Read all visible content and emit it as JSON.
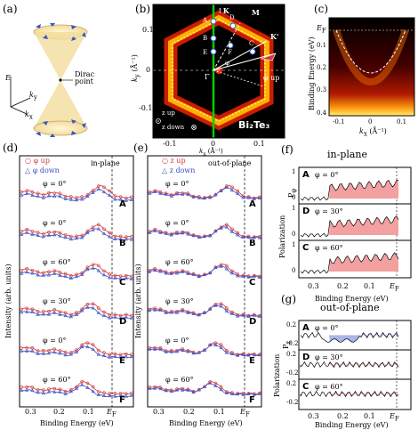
{
  "panel_labels": [
    "(a)",
    "(b)",
    "(c)",
    "(d)",
    "(e)",
    "(f)",
    "(g)"
  ],
  "panel_a": {
    "E": "E",
    "ky": "k",
    "ky_sub": "y",
    "kx": "k",
    "kx_sub": "x",
    "dirac": "Dirac",
    "point": "point"
  },
  "panel_b": {
    "k_vec": "K",
    "m_vec": "M",
    "kprime": "K'",
    "phi_up": "φ up",
    "gamma": "Γ",
    "zup": "z up",
    "zdown": "z down",
    "material": "Bi₂Te₃",
    "points": [
      "A",
      "B",
      "D",
      "E",
      "F",
      "C"
    ],
    "phi": "φ",
    "ylabel": "k",
    "ylabel_sub": "y",
    "ylabel_unit": " (Å⁻¹)",
    "xlabel": "k",
    "xlabel_sub": "x",
    "xlabel_unit": " (Å⁻¹)",
    "yticks": [
      "0.1",
      "0",
      "-0.1"
    ],
    "xticks": [
      "-0.1",
      "0",
      "0.1"
    ]
  },
  "panel_c": {
    "ef": "E",
    "ef_sub": "F",
    "ylabel": "Binding Energy (eV)",
    "yticks": [
      "0.1",
      "0.2",
      "0.3",
      "0.4"
    ],
    "xticks": [
      "-0.1",
      "0",
      "0.1"
    ],
    "xlabel": "k",
    "xlabel_sub": "x",
    "xlabel_unit": " (Å⁻¹)"
  },
  "panel_d": {
    "title": "in-plane",
    "legend": [
      {
        "sym": "○",
        "label": "φ up"
      },
      {
        "sym": "△",
        "label": "φ down"
      }
    ],
    "rows": [
      {
        "angle": "φ = 0°",
        "label": "A"
      },
      {
        "angle": "φ = 0°",
        "label": "B"
      },
      {
        "angle": "φ = 60°",
        "label": "C"
      },
      {
        "angle": "φ = 30°",
        "label": "D"
      },
      {
        "angle": "φ = 0°",
        "label": "E"
      },
      {
        "angle": "φ = 60°",
        "label": "F"
      }
    ],
    "ylabel": "Intensity (arb. units)",
    "xticks": [
      "0.3",
      "0.2",
      "0.1"
    ],
    "ef": "E",
    "ef_sub": "F",
    "xlabel": "Binding Energy (eV)"
  },
  "panel_e": {
    "title": "out-of-plane",
    "legend": [
      {
        "sym": "○",
        "label": "z  up"
      },
      {
        "sym": "△",
        "label": "z  down"
      }
    ],
    "rows": [
      {
        "angle": "φ = 0°",
        "label": "A"
      },
      {
        "angle": "φ = 0°",
        "label": "B"
      },
      {
        "angle": "φ = 60°",
        "label": "C"
      },
      {
        "angle": "φ = 30°",
        "label": "D"
      },
      {
        "angle": "φ = 0°",
        "label": "E"
      },
      {
        "angle": "φ = 60°",
        "label": "F"
      }
    ],
    "ylabel": "Intensity (arb. units)",
    "xticks": [
      "0.3",
      "0.2",
      "0.1"
    ],
    "ef": "E",
    "ef_sub": "F",
    "xlabel": "Binding Energy (eV)"
  },
  "panel_f": {
    "title": "in-plane",
    "ylabel": "Polarization",
    "ysub": "P",
    "ysub_sub": "φ",
    "rows": [
      {
        "label": "A",
        "angle": "φ = 0°"
      },
      {
        "label": "D",
        "angle": "φ = 30°"
      },
      {
        "label": "C",
        "angle": "φ = 60°"
      }
    ],
    "ticks": [
      "1",
      "0",
      "1",
      "0",
      "1",
      "0"
    ],
    "xticks": [
      "0.3",
      "0.2",
      "0.1"
    ],
    "ef": "E",
    "ef_sub": "F",
    "xlabel": "Binding Energy (eV)"
  },
  "panel_g": {
    "title": "out-of-plane",
    "ylabel": "Polarization",
    "ysub": "P",
    "ysub_sub": "z",
    "rows": [
      {
        "label": "A",
        "angle": "φ = 0°"
      },
      {
        "label": "D",
        "angle": "φ = 30°"
      },
      {
        "label": "C",
        "angle": "φ = 60°"
      }
    ],
    "ticks": [
      "0.2",
      "-0.2",
      "0.2",
      "-0.2",
      "0.2",
      "-0.2"
    ],
    "xticks": [
      "0.3",
      "0.2",
      "0.1"
    ],
    "ef": "E",
    "ef_sub": "F",
    "xlabel": "Binding Energy (eV)"
  },
  "colors": {
    "up": "#d23a3a",
    "down": "#3a4fc8",
    "fill_pos": "#f2a0a0",
    "fill_neg": "#a9b6e6"
  }
}
